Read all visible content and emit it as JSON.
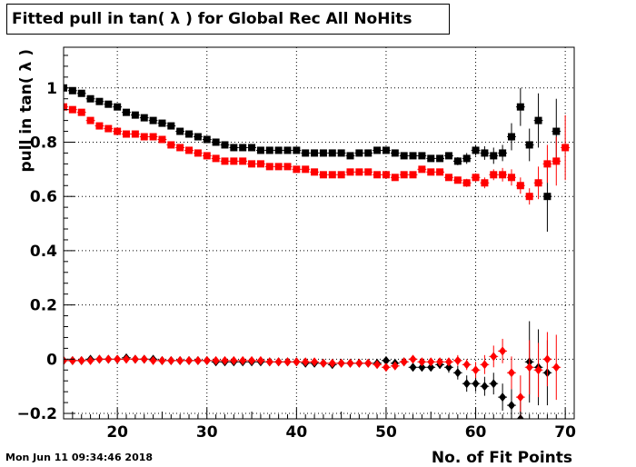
{
  "title": "Fitted pull in tan( λ ) for Global Rec All NoHits",
  "timestamp": "Mon Jun 11 09:34:46 2018",
  "chart_data": {
    "type": "scatter",
    "title": "Fitted pull in tan( λ ) for Global Rec All NoHits",
    "xlabel": "No. of Fit Points",
    "ylabel": "pull in tan( λ )",
    "xlim": [
      14,
      71
    ],
    "ylim": [
      -0.22,
      1.15
    ],
    "x_ticks": [
      20,
      30,
      40,
      50,
      60,
      70
    ],
    "x_tick_labels": [
      "20",
      "30",
      "40",
      "50",
      "60",
      "70"
    ],
    "y_ticks": [
      -0.2,
      0,
      0.2,
      0.4,
      0.6,
      0.8,
      1
    ],
    "y_tick_labels": [
      "−0.2",
      "0",
      "0.2",
      "0.4",
      "0.6",
      "0.8",
      "1"
    ],
    "grid": true,
    "colors": {
      "black": "#000000",
      "red": "#ff0000"
    },
    "x": [
      14,
      15,
      16,
      17,
      18,
      19,
      20,
      21,
      22,
      23,
      24,
      25,
      26,
      27,
      28,
      29,
      30,
      31,
      32,
      33,
      34,
      35,
      36,
      37,
      38,
      39,
      40,
      41,
      42,
      43,
      44,
      45,
      46,
      47,
      48,
      49,
      50,
      51,
      52,
      53,
      54,
      55,
      56,
      57,
      58,
      59,
      60,
      61,
      62,
      63,
      64,
      65,
      66,
      67,
      68,
      69,
      70
    ],
    "series": [
      {
        "marker": "square",
        "color": "#000000",
        "values": [
          1.0,
          0.99,
          0.98,
          0.96,
          0.95,
          0.94,
          0.93,
          0.91,
          0.9,
          0.89,
          0.88,
          0.87,
          0.86,
          0.84,
          0.83,
          0.82,
          0.81,
          0.8,
          0.79,
          0.78,
          0.78,
          0.78,
          0.77,
          0.77,
          0.77,
          0.77,
          0.77,
          0.76,
          0.76,
          0.76,
          0.76,
          0.76,
          0.75,
          0.76,
          0.76,
          0.77,
          0.77,
          0.76,
          0.75,
          0.75,
          0.75,
          0.74,
          0.74,
          0.75,
          0.73,
          0.74,
          0.77,
          0.76,
          0.75,
          0.76,
          0.82,
          0.93,
          0.79,
          0.88,
          0.6,
          0.84,
          null
        ],
        "errors": [
          0.01,
          0.01,
          0.01,
          0.01,
          0.01,
          0.01,
          0.01,
          0.01,
          0.01,
          0.01,
          0.01,
          0.01,
          0.01,
          0.01,
          0.01,
          0.01,
          0.01,
          0.01,
          0.01,
          0.01,
          0.01,
          0.01,
          0.01,
          0.01,
          0.01,
          0.01,
          0.01,
          0.01,
          0.01,
          0.01,
          0.01,
          0.01,
          0.01,
          0.01,
          0.01,
          0.01,
          0.01,
          0.01,
          0.01,
          0.01,
          0.01,
          0.01,
          0.01,
          0.01,
          0.015,
          0.02,
          0.02,
          0.025,
          0.03,
          0.03,
          0.05,
          0.07,
          0.06,
          0.1,
          0.13,
          0.12,
          null
        ]
      },
      {
        "marker": "square",
        "color": "#ff0000",
        "values": [
          0.93,
          0.92,
          0.91,
          0.88,
          0.86,
          0.85,
          0.84,
          0.83,
          0.83,
          0.82,
          0.82,
          0.81,
          0.79,
          0.78,
          0.77,
          0.76,
          0.75,
          0.74,
          0.73,
          0.73,
          0.73,
          0.72,
          0.72,
          0.71,
          0.71,
          0.71,
          0.7,
          0.7,
          0.69,
          0.68,
          0.68,
          0.68,
          0.69,
          0.69,
          0.69,
          0.68,
          0.68,
          0.67,
          0.68,
          0.68,
          0.7,
          0.69,
          0.69,
          0.67,
          0.66,
          0.65,
          0.67,
          0.65,
          0.68,
          0.68,
          0.67,
          0.64,
          0.6,
          0.65,
          0.72,
          0.73,
          0.78
        ],
        "errors": [
          0.01,
          0.01,
          0.01,
          0.01,
          0.01,
          0.01,
          0.01,
          0.01,
          0.01,
          0.01,
          0.01,
          0.01,
          0.01,
          0.01,
          0.01,
          0.01,
          0.01,
          0.01,
          0.01,
          0.01,
          0.01,
          0.01,
          0.01,
          0.01,
          0.01,
          0.01,
          0.01,
          0.01,
          0.01,
          0.01,
          0.01,
          0.01,
          0.01,
          0.01,
          0.01,
          0.01,
          0.01,
          0.01,
          0.01,
          0.01,
          0.01,
          0.01,
          0.01,
          0.012,
          0.012,
          0.015,
          0.015,
          0.02,
          0.02,
          0.025,
          0.03,
          0.03,
          0.03,
          0.06,
          0.07,
          0.09,
          0.12
        ]
      },
      {
        "marker": "diamond",
        "color": "#000000",
        "values": [
          -0.005,
          -0.005,
          -0.005,
          0.0,
          0.0,
          0.0,
          0.0,
          0.005,
          0.0,
          0.0,
          0.0,
          -0.005,
          -0.005,
          -0.005,
          -0.005,
          -0.005,
          -0.005,
          -0.01,
          -0.01,
          -0.01,
          -0.01,
          -0.01,
          -0.01,
          -0.01,
          -0.01,
          -0.01,
          -0.01,
          -0.015,
          -0.015,
          -0.015,
          -0.02,
          -0.015,
          -0.015,
          -0.015,
          -0.015,
          -0.015,
          -0.005,
          -0.015,
          -0.01,
          -0.03,
          -0.03,
          -0.03,
          -0.02,
          -0.03,
          -0.05,
          -0.09,
          -0.09,
          -0.1,
          -0.09,
          -0.14,
          -0.17,
          -0.22,
          -0.01,
          -0.03,
          -0.05,
          null,
          null
        ],
        "errors": [
          0.005,
          0.005,
          0.005,
          0.005,
          0.005,
          0.005,
          0.005,
          0.005,
          0.005,
          0.005,
          0.005,
          0.005,
          0.005,
          0.005,
          0.005,
          0.005,
          0.005,
          0.005,
          0.005,
          0.005,
          0.005,
          0.005,
          0.005,
          0.005,
          0.005,
          0.005,
          0.005,
          0.005,
          0.005,
          0.005,
          0.005,
          0.005,
          0.005,
          0.005,
          0.005,
          0.005,
          0.005,
          0.006,
          0.006,
          0.008,
          0.01,
          0.012,
          0.015,
          0.02,
          0.025,
          0.03,
          0.03,
          0.035,
          0.04,
          0.05,
          0.06,
          0.08,
          0.15,
          0.14,
          0.12,
          null,
          null
        ]
      },
      {
        "marker": "diamond",
        "color": "#ff0000",
        "values": [
          -0.005,
          -0.005,
          -0.005,
          -0.005,
          0.0,
          0.0,
          0.0,
          0.0,
          0.0,
          0.0,
          -0.005,
          -0.005,
          -0.005,
          -0.005,
          -0.005,
          -0.005,
          -0.005,
          -0.005,
          -0.005,
          -0.005,
          -0.005,
          -0.005,
          -0.005,
          -0.01,
          -0.01,
          -0.01,
          -0.01,
          -0.01,
          -0.01,
          -0.015,
          -0.015,
          -0.015,
          -0.015,
          -0.015,
          -0.015,
          -0.02,
          -0.03,
          -0.025,
          -0.01,
          0.0,
          -0.01,
          -0.01,
          -0.01,
          -0.01,
          -0.005,
          -0.02,
          -0.04,
          -0.02,
          0.01,
          0.03,
          -0.05,
          -0.14,
          -0.03,
          -0.04,
          0.0,
          -0.03,
          null
        ],
        "errors": [
          0.005,
          0.005,
          0.005,
          0.005,
          0.005,
          0.005,
          0.005,
          0.005,
          0.005,
          0.005,
          0.005,
          0.005,
          0.005,
          0.005,
          0.005,
          0.005,
          0.005,
          0.005,
          0.005,
          0.005,
          0.005,
          0.005,
          0.005,
          0.005,
          0.005,
          0.005,
          0.005,
          0.005,
          0.005,
          0.005,
          0.005,
          0.005,
          0.005,
          0.005,
          0.005,
          0.006,
          0.006,
          0.008,
          0.008,
          0.01,
          0.01,
          0.012,
          0.015,
          0.015,
          0.02,
          0.02,
          0.03,
          0.035,
          0.04,
          0.045,
          0.06,
          0.08,
          0.1,
          0.1,
          0.1,
          0.12,
          null
        ]
      }
    ]
  }
}
